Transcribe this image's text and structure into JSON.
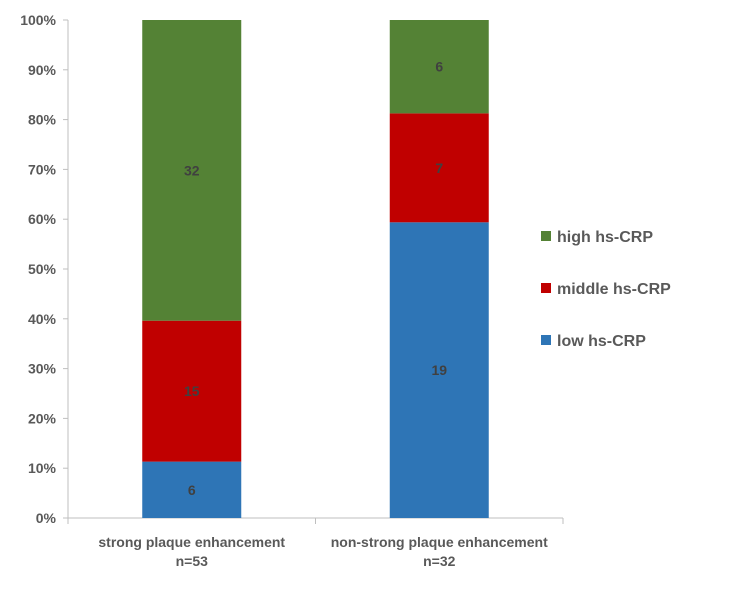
{
  "chart_data": {
    "type": "bar",
    "stacked": true,
    "normalized": true,
    "title": "",
    "xlabel": "",
    "ylabel": "",
    "ylim": [
      0,
      100
    ],
    "yticks": [
      "0%",
      "10%",
      "20%",
      "30%",
      "40%",
      "50%",
      "60%",
      "70%",
      "80%",
      "90%",
      "100%"
    ],
    "yticks_values": [
      0,
      10,
      20,
      30,
      40,
      50,
      60,
      70,
      80,
      90,
      100
    ],
    "grid": false,
    "legend_position": "right",
    "categories": [
      {
        "line1": "strong plaque enhancement",
        "line2": "n=53"
      },
      {
        "line1": "non-strong plaque enhancement",
        "line2": "n=32"
      }
    ],
    "series": [
      {
        "name": "low hs-CRP",
        "color": "#2e75b6",
        "values": [
          6,
          19
        ],
        "labels": [
          "6",
          "19"
        ]
      },
      {
        "name": "middle hs-CRP",
        "color": "#c00000",
        "values": [
          15,
          7
        ],
        "labels": [
          "15",
          "7"
        ]
      },
      {
        "name": "high hs-CRP",
        "color": "#548235",
        "values": [
          32,
          6
        ],
        "labels": [
          "32",
          "6"
        ]
      }
    ],
    "legend_order": [
      "high hs-CRP",
      "middle hs-CRP",
      "low hs-CRP"
    ]
  }
}
